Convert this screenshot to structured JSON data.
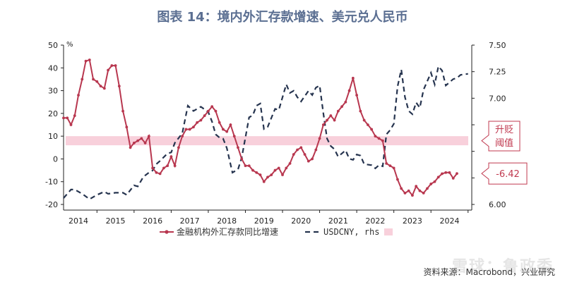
{
  "title": "图表 14：境内外汇存款增速、美元兑人民币",
  "source": "资料来源：Macrobond，兴业研究",
  "watermark": "雪球：鲁政委",
  "colors": {
    "deposit_line": "#b8374f",
    "usdcny_line": "#26344f",
    "band": "#f8d0db",
    "callout": "#c0394f",
    "title": "#5b6f92"
  },
  "chart_data": {
    "type": "line",
    "title": "图表 14：境内外汇存款增速、美元兑人民币",
    "left_axis": {
      "unit": "%",
      "range": [
        -20,
        50
      ],
      "ticks": [
        -20,
        -10,
        0,
        10,
        20,
        30,
        40,
        50
      ]
    },
    "right_axis": {
      "range": [
        6.0,
        7.5
      ],
      "ticks": [
        6.0,
        6.25,
        6.5,
        6.75,
        7.0,
        7.25,
        7.5
      ],
      "tick_labels": [
        "6.00",
        "",
        "",
        "",
        "7.00",
        "7.25",
        "7.50"
      ]
    },
    "x_axis": {
      "range": [
        2013.6,
        2024.6
      ],
      "ticks": [
        2014,
        2015,
        2016,
        2017,
        2018,
        2019,
        2020,
        2021,
        2022,
        2023,
        2024
      ]
    },
    "series": [
      {
        "name": "金融机构外汇存款同比增速",
        "axis": "left",
        "style": "solid-markers",
        "points": [
          [
            2013.6,
            18
          ],
          [
            2013.7,
            18
          ],
          [
            2013.8,
            15
          ],
          [
            2013.9,
            19
          ],
          [
            2014.0,
            28
          ],
          [
            2014.1,
            35
          ],
          [
            2014.2,
            43
          ],
          [
            2014.3,
            43.5
          ],
          [
            2014.4,
            35
          ],
          [
            2014.5,
            34
          ],
          [
            2014.6,
            32
          ],
          [
            2014.7,
            31
          ],
          [
            2014.8,
            39
          ],
          [
            2014.9,
            41
          ],
          [
            2015.0,
            41
          ],
          [
            2015.1,
            32
          ],
          [
            2015.2,
            21
          ],
          [
            2015.3,
            14
          ],
          [
            2015.4,
            5
          ],
          [
            2015.5,
            7
          ],
          [
            2015.6,
            8
          ],
          [
            2015.7,
            9
          ],
          [
            2015.8,
            7
          ],
          [
            2015.9,
            10
          ],
          [
            2016.0,
            -4
          ],
          [
            2016.1,
            -6
          ],
          [
            2016.2,
            -6.5
          ],
          [
            2016.3,
            -4
          ],
          [
            2016.4,
            -3
          ],
          [
            2016.5,
            1
          ],
          [
            2016.6,
            -3
          ],
          [
            2016.7,
            5
          ],
          [
            2016.8,
            10
          ],
          [
            2016.9,
            13
          ],
          [
            2017.0,
            13
          ],
          [
            2017.1,
            14
          ],
          [
            2017.2,
            16
          ],
          [
            2017.3,
            17
          ],
          [
            2017.4,
            19
          ],
          [
            2017.5,
            21
          ],
          [
            2017.6,
            23
          ],
          [
            2017.7,
            21
          ],
          [
            2017.8,
            16
          ],
          [
            2017.9,
            13
          ],
          [
            2018.0,
            12
          ],
          [
            2018.1,
            15
          ],
          [
            2018.2,
            10
          ],
          [
            2018.3,
            5
          ],
          [
            2018.4,
            0
          ],
          [
            2018.5,
            -3
          ],
          [
            2018.6,
            -3
          ],
          [
            2018.7,
            -5
          ],
          [
            2018.8,
            -6
          ],
          [
            2018.9,
            -7
          ],
          [
            2019.0,
            -10
          ],
          [
            2019.1,
            -8
          ],
          [
            2019.2,
            -7
          ],
          [
            2019.3,
            -5
          ],
          [
            2019.4,
            -4
          ],
          [
            2019.5,
            -7
          ],
          [
            2019.6,
            -4
          ],
          [
            2019.7,
            -2
          ],
          [
            2019.8,
            2
          ],
          [
            2019.9,
            4
          ],
          [
            2020.0,
            5
          ],
          [
            2020.1,
            2
          ],
          [
            2020.2,
            -1
          ],
          [
            2020.3,
            0
          ],
          [
            2020.4,
            4
          ],
          [
            2020.5,
            9
          ],
          [
            2020.6,
            15
          ],
          [
            2020.7,
            17
          ],
          [
            2020.8,
            19
          ],
          [
            2020.9,
            17
          ],
          [
            2021.0,
            21
          ],
          [
            2021.1,
            23
          ],
          [
            2021.2,
            25
          ],
          [
            2021.3,
            30
          ],
          [
            2021.4,
            35.5
          ],
          [
            2021.5,
            28
          ],
          [
            2021.6,
            21
          ],
          [
            2021.7,
            17
          ],
          [
            2021.8,
            15
          ],
          [
            2021.9,
            13
          ],
          [
            2022.0,
            10
          ],
          [
            2022.1,
            9
          ],
          [
            2022.2,
            8
          ],
          [
            2022.3,
            -2
          ],
          [
            2022.4,
            -3
          ],
          [
            2022.5,
            -4
          ],
          [
            2022.6,
            -9
          ],
          [
            2022.7,
            -13
          ],
          [
            2022.8,
            -15
          ],
          [
            2022.9,
            -14
          ],
          [
            2023.0,
            -16
          ],
          [
            2023.1,
            -12
          ],
          [
            2023.2,
            -14
          ],
          [
            2023.3,
            -15
          ],
          [
            2023.4,
            -13
          ],
          [
            2023.5,
            -11
          ],
          [
            2023.6,
            -10
          ],
          [
            2023.7,
            -8
          ],
          [
            2023.8,
            -6.5
          ],
          [
            2023.9,
            -6
          ],
          [
            2024.0,
            -6
          ],
          [
            2024.1,
            -8.5
          ],
          [
            2024.2,
            -6.42
          ]
        ]
      },
      {
        "name": "USDCNY, rhs",
        "axis": "right",
        "style": "dashed",
        "points": [
          [
            2013.6,
            6.06
          ],
          [
            2013.8,
            6.14
          ],
          [
            2013.9,
            6.14
          ],
          [
            2014.1,
            6.1
          ],
          [
            2014.3,
            6.05
          ],
          [
            2014.5,
            6.09
          ],
          [
            2014.7,
            6.12
          ],
          [
            2014.8,
            6.1
          ],
          [
            2015.0,
            6.11
          ],
          [
            2015.2,
            6.11
          ],
          [
            2015.3,
            6.09
          ],
          [
            2015.5,
            6.18
          ],
          [
            2015.6,
            6.17
          ],
          [
            2015.75,
            6.26
          ],
          [
            2015.9,
            6.3
          ],
          [
            2016.0,
            6.32
          ],
          [
            2016.1,
            6.38
          ],
          [
            2016.2,
            6.41
          ],
          [
            2016.4,
            6.48
          ],
          [
            2016.5,
            6.49
          ],
          [
            2016.6,
            6.58
          ],
          [
            2016.8,
            6.67
          ],
          [
            2016.95,
            6.93
          ],
          [
            2017.1,
            6.88
          ],
          [
            2017.3,
            6.92
          ],
          [
            2017.5,
            6.87
          ],
          [
            2017.6,
            6.78
          ],
          [
            2017.7,
            6.66
          ],
          [
            2017.8,
            6.63
          ],
          [
            2017.9,
            6.62
          ],
          [
            2018.0,
            6.53
          ],
          [
            2018.15,
            6.3
          ],
          [
            2018.3,
            6.33
          ],
          [
            2018.4,
            6.44
          ],
          [
            2018.5,
            6.63
          ],
          [
            2018.6,
            6.82
          ],
          [
            2018.7,
            6.84
          ],
          [
            2018.8,
            6.93
          ],
          [
            2018.9,
            6.95
          ],
          [
            2019.0,
            6.71
          ],
          [
            2019.1,
            6.73
          ],
          [
            2019.3,
            6.9
          ],
          [
            2019.4,
            6.89
          ],
          [
            2019.6,
            7.13
          ],
          [
            2019.7,
            7.05
          ],
          [
            2019.8,
            7.07
          ],
          [
            2019.9,
            7.01
          ],
          [
            2020.0,
            6.97
          ],
          [
            2020.2,
            7.07
          ],
          [
            2020.3,
            7.03
          ],
          [
            2020.4,
            7.1
          ],
          [
            2020.5,
            7.12
          ],
          [
            2020.6,
            6.86
          ],
          [
            2020.7,
            6.62
          ],
          [
            2020.8,
            6.55
          ],
          [
            2020.9,
            6.52
          ],
          [
            2021.0,
            6.45
          ],
          [
            2021.2,
            6.51
          ],
          [
            2021.3,
            6.43
          ],
          [
            2021.4,
            6.42
          ],
          [
            2021.5,
            6.47
          ],
          [
            2021.6,
            6.46
          ],
          [
            2021.7,
            6.38
          ],
          [
            2021.9,
            6.37
          ],
          [
            2022.0,
            6.34
          ],
          [
            2022.1,
            6.37
          ],
          [
            2022.2,
            6.36
          ],
          [
            2022.3,
            6.66
          ],
          [
            2022.4,
            6.7
          ],
          [
            2022.5,
            6.76
          ],
          [
            2022.6,
            7.11
          ],
          [
            2022.7,
            7.27
          ],
          [
            2022.8,
            7.01
          ],
          [
            2022.9,
            6.88
          ],
          [
            2023.0,
            6.85
          ],
          [
            2023.1,
            6.96
          ],
          [
            2023.2,
            6.91
          ],
          [
            2023.3,
            7.08
          ],
          [
            2023.5,
            7.24
          ],
          [
            2023.6,
            7.13
          ],
          [
            2023.7,
            7.3
          ],
          [
            2023.8,
            7.26
          ],
          [
            2023.9,
            7.12
          ],
          [
            2024.0,
            7.15
          ],
          [
            2024.1,
            7.18
          ],
          [
            2024.2,
            7.19
          ],
          [
            2024.3,
            7.22
          ],
          [
            2024.5,
            7.23
          ]
        ]
      }
    ],
    "band": {
      "axis": "left",
      "from": 6,
      "to": 10
    },
    "legend": {
      "placement": "bottom",
      "entries": [
        "金融机构外汇存款同比增速",
        "USDCNY, rhs",
        ""
      ]
    },
    "annotations": [
      {
        "text": "升贬\n阈值",
        "kind": "band-callout"
      },
      {
        "text": "-6.42",
        "kind": "last-value-callout"
      }
    ]
  }
}
